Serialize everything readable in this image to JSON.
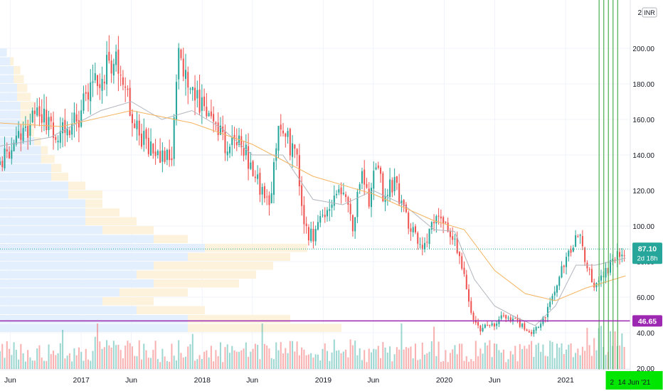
{
  "chart_data": {
    "type": "candlestick",
    "currency": "INR",
    "y_axis": {
      "ticks": [
        20,
        40,
        60,
        80,
        100,
        120,
        140,
        160,
        180,
        200
      ],
      "tick_labels": [
        "20.00",
        "40.00",
        "60.00",
        "80.00",
        "100.00",
        "120.00",
        "140.00",
        "160.00",
        "180.00",
        "200.00"
      ],
      "range": [
        20,
        220
      ],
      "top_label": "2"
    },
    "x_axis": {
      "tick_labels": [
        "Jun",
        "2017",
        "Jun",
        "2018",
        "Jun",
        "2019",
        "Jun",
        "2020",
        "Jun",
        "2021"
      ],
      "tick_dates": [
        "2016-06-01",
        "2017-01-01",
        "2017-06-01",
        "2018-01-01",
        "2018-06-01",
        "2019-01-01",
        "2019-06-01",
        "2020-01-01",
        "2020-06-01",
        "2021-01-01"
      ],
      "range": [
        "2016-05-01",
        "2021-07-15"
      ],
      "cursor_label_prefix": "2",
      "cursor_label": "14 Jun '21",
      "cursor_date": "2021-06-14"
    },
    "last_price": {
      "value": 87.1,
      "label": "87.10",
      "countdown": "2d 18h",
      "color": "#26a69a"
    },
    "horizontal_line": {
      "value": 46.65,
      "label": "46.65",
      "color": "#9c27b0"
    },
    "vertical_lines": {
      "dates": [
        "2021-04-12",
        "2021-04-26",
        "2021-05-10",
        "2021-05-24",
        "2021-06-07"
      ],
      "color": "#4caf50"
    },
    "price_path": [
      [
        "2016-05-01",
        135
      ],
      [
        "2016-07-01",
        150
      ],
      [
        "2016-09-01",
        165
      ],
      [
        "2016-10-15",
        150
      ],
      [
        "2016-12-01",
        155
      ],
      [
        "2017-02-01",
        175
      ],
      [
        "2017-03-20",
        190
      ],
      [
        "2017-04-20",
        190
      ],
      [
        "2017-06-01",
        165
      ],
      [
        "2017-07-01",
        150
      ],
      [
        "2017-08-15",
        140
      ],
      [
        "2017-10-01",
        137
      ],
      [
        "2017-10-20",
        200
      ],
      [
        "2017-12-01",
        175
      ],
      [
        "2018-01-01",
        165
      ],
      [
        "2018-02-01",
        160
      ],
      [
        "2018-03-15",
        145
      ],
      [
        "2018-04-15",
        150
      ],
      [
        "2018-05-15",
        140
      ],
      [
        "2018-07-01",
        120
      ],
      [
        "2018-07-25",
        115
      ],
      [
        "2018-08-15",
        155
      ],
      [
        "2018-09-15",
        150
      ],
      [
        "2018-10-15",
        135
      ],
      [
        "2018-11-01",
        100
      ],
      [
        "2018-12-01",
        93
      ],
      [
        "2019-02-01",
        118
      ],
      [
        "2019-03-01",
        122
      ],
      [
        "2019-04-01",
        100
      ],
      [
        "2019-04-25",
        130
      ],
      [
        "2019-05-20",
        112
      ],
      [
        "2019-06-10",
        140
      ],
      [
        "2019-07-01",
        118
      ],
      [
        "2019-08-01",
        125
      ],
      [
        "2019-09-15",
        100
      ],
      [
        "2019-10-20",
        88
      ],
      [
        "2019-12-01",
        100
      ],
      [
        "2020-01-01",
        105
      ],
      [
        "2020-02-01",
        92
      ],
      [
        "2020-03-01",
        75
      ],
      [
        "2020-03-25",
        47
      ],
      [
        "2020-04-20",
        42
      ],
      [
        "2020-06-01",
        45
      ],
      [
        "2020-07-01",
        50
      ],
      [
        "2020-08-01",
        47
      ],
      [
        "2020-09-15",
        40
      ],
      [
        "2020-10-20",
        45
      ],
      [
        "2020-12-01",
        65
      ],
      [
        "2021-01-15",
        88
      ],
      [
        "2021-02-15",
        97
      ],
      [
        "2021-03-01",
        82
      ],
      [
        "2021-04-01",
        65
      ],
      [
        "2021-05-01",
        73
      ],
      [
        "2021-06-01",
        85
      ],
      [
        "2021-07-01",
        87.1
      ]
    ],
    "ema_20": [
      [
        "2016-05-01",
        145
      ],
      [
        "2016-10-01",
        150
      ],
      [
        "2017-03-01",
        165
      ],
      [
        "2017-06-01",
        170
      ],
      [
        "2017-09-01",
        160
      ],
      [
        "2017-12-01",
        165
      ],
      [
        "2018-03-01",
        155
      ],
      [
        "2018-06-01",
        140
      ],
      [
        "2018-09-01",
        140
      ],
      [
        "2018-12-01",
        115
      ],
      [
        "2019-03-01",
        112
      ],
      [
        "2019-06-01",
        120
      ],
      [
        "2019-09-01",
        112
      ],
      [
        "2019-12-01",
        98
      ],
      [
        "2020-02-01",
        97
      ],
      [
        "2020-04-01",
        70
      ],
      [
        "2020-06-01",
        55
      ],
      [
        "2020-08-01",
        49
      ],
      [
        "2020-10-01",
        44
      ],
      [
        "2020-12-01",
        55
      ],
      [
        "2021-02-01",
        78
      ],
      [
        "2021-04-01",
        78
      ],
      [
        "2021-07-01",
        82
      ]
    ],
    "ema_50": [
      [
        "2016-05-01",
        158
      ],
      [
        "2016-11-01",
        156
      ],
      [
        "2017-06-01",
        165
      ],
      [
        "2017-12-01",
        158
      ],
      [
        "2018-06-01",
        146
      ],
      [
        "2018-12-01",
        128
      ],
      [
        "2019-06-01",
        118
      ],
      [
        "2019-12-01",
        103
      ],
      [
        "2020-03-01",
        98
      ],
      [
        "2020-06-01",
        75
      ],
      [
        "2020-09-01",
        62
      ],
      [
        "2020-12-01",
        58
      ],
      [
        "2021-03-01",
        65
      ],
      [
        "2021-07-01",
        72
      ]
    ],
    "volume_profile": {
      "bins": [
        [
          40,
          45,
          1.0,
          0.55
        ],
        [
          45,
          50,
          0.85,
          0.55
        ],
        [
          50,
          55,
          0.6,
          0.4
        ],
        [
          55,
          60,
          0.45,
          0.3
        ],
        [
          60,
          65,
          0.55,
          0.35
        ],
        [
          65,
          70,
          0.7,
          0.45
        ],
        [
          70,
          75,
          0.75,
          0.4
        ],
        [
          75,
          80,
          0.8,
          0.45
        ],
        [
          80,
          85,
          0.85,
          0.55
        ],
        [
          85,
          90,
          0.9,
          0.6
        ],
        [
          90,
          95,
          0.55,
          0.45
        ],
        [
          95,
          100,
          0.45,
          0.3
        ],
        [
          100,
          105,
          0.4,
          0.25
        ],
        [
          105,
          110,
          0.35,
          0.25
        ],
        [
          110,
          115,
          0.3,
          0.25
        ],
        [
          115,
          120,
          0.3,
          0.2
        ],
        [
          120,
          125,
          0.25,
          0.2
        ],
        [
          125,
          130,
          0.2,
          0.15
        ],
        [
          130,
          135,
          0.18,
          0.15
        ],
        [
          135,
          140,
          0.16,
          0.12
        ],
        [
          140,
          145,
          0.14,
          0.12
        ],
        [
          145,
          150,
          0.12,
          0.1
        ],
        [
          150,
          155,
          0.1,
          0.08
        ],
        [
          155,
          160,
          0.1,
          0.06
        ],
        [
          160,
          165,
          0.1,
          0.06
        ],
        [
          165,
          170,
          0.1,
          0.06
        ],
        [
          170,
          175,
          0.09,
          0.05
        ],
        [
          175,
          180,
          0.08,
          0.05
        ],
        [
          180,
          185,
          0.07,
          0.04
        ],
        [
          185,
          190,
          0.06,
          0.04
        ],
        [
          190,
          195,
          0.04,
          0.03
        ],
        [
          195,
          200,
          0.02,
          0.02
        ]
      ]
    },
    "colors": {
      "up": "#26a69a",
      "down": "#ef5350",
      "ema_fast": "#b2b5be",
      "ema_slow": "#f5b460",
      "profile_up": "#e3effc",
      "profile_down": "#fdf3dc",
      "vline": "#4caf50",
      "hline": "#9c27b0"
    }
  }
}
